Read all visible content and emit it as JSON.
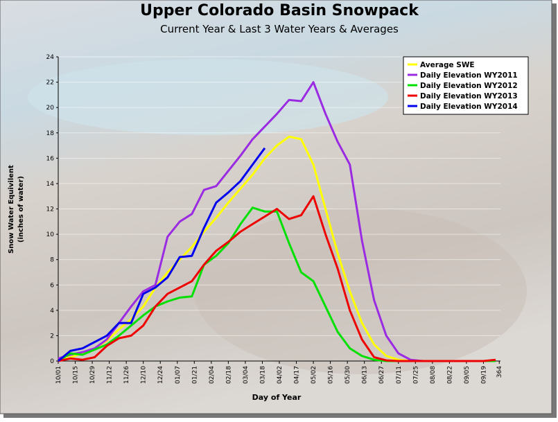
{
  "chart_data": {
    "type": "line",
    "title": "Upper Colorado Basin Snowpack",
    "subtitle": "Current Year & Last 3 Water Years & Averages",
    "ylabel": [
      "Snow Water Equivilent",
      "(inches of water)"
    ],
    "xlabel": "Day of Year",
    "x": [
      1,
      11,
      21,
      31,
      41,
      51,
      61,
      71,
      81,
      91,
      101,
      111,
      121,
      131,
      141,
      151,
      161,
      171,
      181,
      191,
      201,
      211,
      221,
      231,
      241,
      251,
      261,
      271,
      281,
      291,
      301,
      311,
      321,
      331,
      341,
      351,
      361
    ],
    "series": [
      {
        "name": "Average SWE",
        "color": "#ffff00",
        "values": [
          0,
          0.3,
          0.6,
          1.0,
          1.6,
          2.5,
          3.3,
          4.3,
          5.8,
          7.0,
          8.0,
          9.0,
          10.2,
          11.3,
          12.5,
          13.6,
          14.7,
          16.0,
          17.0,
          17.7,
          17.5,
          15.5,
          12.0,
          8.5,
          5.5,
          3.0,
          1.3,
          0.4,
          0.1,
          0,
          0,
          0,
          0,
          0,
          0,
          0,
          0
        ]
      },
      {
        "name": "Daily Elevation WY2011",
        "color": "#9a2be2",
        "values": [
          0.2,
          0.5,
          0.7,
          1.0,
          1.7,
          3.0,
          4.3,
          5.5,
          6.0,
          9.8,
          11.0,
          11.6,
          13.5,
          13.8,
          15.0,
          16.2,
          17.5,
          18.5,
          19.5,
          20.6,
          20.5,
          22.0,
          19.5,
          17.3,
          15.5,
          9.5,
          4.8,
          2.0,
          0.6,
          0.1,
          0,
          0,
          0,
          0,
          0,
          0,
          0
        ]
      },
      {
        "name": "Daily Elevation WY2012",
        "color": "#00e000",
        "values": [
          0,
          0.6,
          0.5,
          0.9,
          1.3,
          2.0,
          2.8,
          3.6,
          4.3,
          4.7,
          5.0,
          5.1,
          7.6,
          8.3,
          9.3,
          10.8,
          12.1,
          11.8,
          11.8,
          9.3,
          7.0,
          6.3,
          4.3,
          2.3,
          1.0,
          0.4,
          0.1,
          0,
          0,
          0,
          0,
          0,
          0,
          0,
          0,
          0,
          0
        ]
      },
      {
        "name": "Daily Elevation WY2013",
        "color": "#ee0000",
        "values": [
          0,
          0.2,
          0.1,
          0.3,
          1.2,
          1.8,
          2.0,
          2.8,
          4.3,
          5.3,
          5.8,
          6.3,
          7.6,
          8.7,
          9.4,
          10.2,
          10.8,
          11.4,
          12.0,
          11.2,
          11.5,
          13.0,
          10.0,
          7.3,
          4.0,
          1.7,
          0.3,
          0.05,
          0,
          0,
          0,
          0,
          0,
          0,
          0,
          0,
          0.1
        ]
      },
      {
        "name": "Daily Elevation WY2014",
        "color": "#0000ee",
        "values": [
          0,
          0.8,
          1.0,
          1.5,
          2.0,
          3.0,
          3.0,
          5.3,
          5.8,
          6.6,
          8.2,
          8.3,
          10.5,
          12.5,
          13.3,
          14.2,
          15.5,
          16.8,
          null,
          null,
          null,
          null,
          null,
          null,
          null,
          null,
          null,
          null,
          null,
          null,
          null,
          null,
          null,
          null,
          null,
          null,
          null
        ]
      }
    ],
    "xlim": [
      1,
      365
    ],
    "xticks": [
      {
        "value": 1,
        "label": "10/01"
      },
      {
        "value": 15,
        "label": "10/15"
      },
      {
        "value": 29,
        "label": "10/29"
      },
      {
        "value": 43,
        "label": "11/12"
      },
      {
        "value": 57,
        "label": "11/26"
      },
      {
        "value": 71,
        "label": "12/10"
      },
      {
        "value": 85,
        "label": "12/24"
      },
      {
        "value": 99,
        "label": "01/07"
      },
      {
        "value": 113,
        "label": "01/21"
      },
      {
        "value": 127,
        "label": "02/04"
      },
      {
        "value": 141,
        "label": "02/18"
      },
      {
        "value": 155,
        "label": "03/04"
      },
      {
        "value": 169,
        "label": "03/18"
      },
      {
        "value": 183,
        "label": "04/02"
      },
      {
        "value": 197,
        "label": "04/17"
      },
      {
        "value": 211,
        "label": "05/02"
      },
      {
        "value": 225,
        "label": "05/16"
      },
      {
        "value": 239,
        "label": "05/30"
      },
      {
        "value": 253,
        "label": "06/13"
      },
      {
        "value": 267,
        "label": "06/27"
      },
      {
        "value": 281,
        "label": "07/11"
      },
      {
        "value": 295,
        "label": "07/25"
      },
      {
        "value": 309,
        "label": "08/08"
      },
      {
        "value": 323,
        "label": "08/22"
      },
      {
        "value": 337,
        "label": "09/05"
      },
      {
        "value": 351,
        "label": "09/19"
      },
      364
    ],
    "ylim": [
      0,
      24
    ],
    "yticks": [
      0,
      2,
      4,
      6,
      8,
      10,
      12,
      14,
      16,
      18,
      20,
      22,
      24
    ],
    "grid": true,
    "legend": "top-right"
  }
}
